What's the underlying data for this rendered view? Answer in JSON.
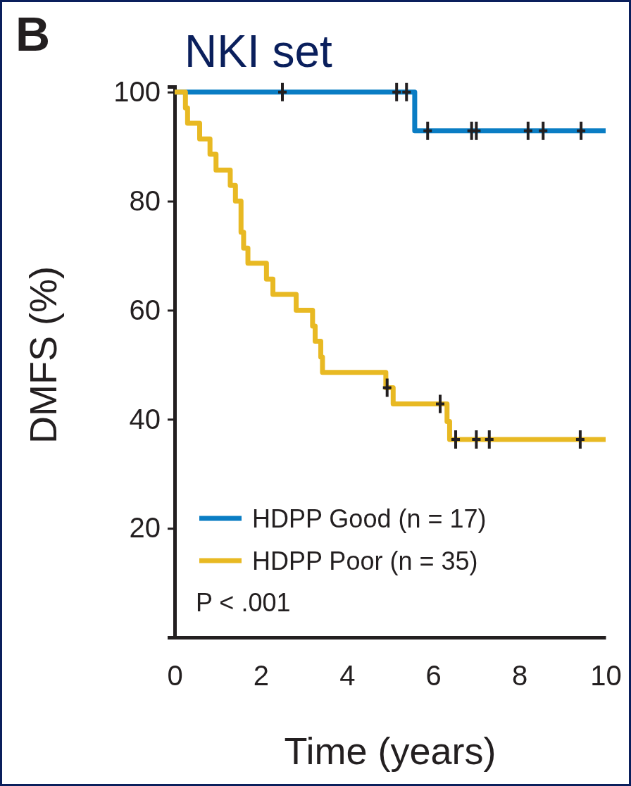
{
  "chart_data": {
    "type": "step",
    "title": "NKI set",
    "xlabel": "Time (years)",
    "ylabel": "DMFS (%)",
    "annotations": [
      "B",
      "P < .001"
    ],
    "xlim": [
      0,
      10
    ],
    "xticks": [
      0,
      2,
      4,
      6,
      8,
      10
    ],
    "ylim": [
      0,
      101
    ],
    "yticks": [
      20,
      40,
      60,
      80,
      100
    ],
    "grid": false,
    "legend": "bottom left",
    "line_style": "solid",
    "series": [
      {
        "name": "HDPP Good (n = 17)",
        "color": "#0a7dc4",
        "x": [
          0,
          5.57,
          10
        ],
        "values": [
          100,
          92.9,
          92.9
        ]
      },
      {
        "name": "HDPP Poor (n = 35)",
        "color": "#e8b923",
        "x": [
          0,
          0.25,
          0.3,
          0.58,
          0.82,
          0.96,
          1.29,
          1.41,
          1.54,
          1.6,
          1.7,
          2.13,
          2.28,
          2.82,
          3.2,
          3.26,
          3.39,
          3.43,
          4.9,
          5.07,
          6.32,
          6.38,
          10
        ],
        "values": [
          100,
          97.1,
          94.3,
          91.4,
          88.6,
          85.7,
          82.9,
          80,
          74.3,
          71.4,
          68.6,
          65.7,
          62.9,
          60,
          57.1,
          54.3,
          51.4,
          48.6,
          45.8,
          42.8,
          39.6,
          36.3,
          36.3
        ]
      },
      {
        "type": "scatter",
        "color": "#231f20",
        "marker": "cross",
        "x": [
          2.5,
          5.15,
          5.38,
          5.87,
          6.89,
          7.0,
          8.2,
          8.55,
          9.43
        ],
        "values": [
          100,
          100,
          100,
          92.9,
          92.9,
          92.9,
          92.9,
          92.9,
          92.9
        ]
      },
      {
        "type": "scatter",
        "color": "#231f20",
        "marker": "cross",
        "x": [
          4.93,
          6.16,
          6.52,
          7.0,
          7.3,
          9.41
        ],
        "values": [
          45.8,
          42.8,
          36.3,
          36.3,
          36.3,
          36.3
        ]
      }
    ]
  }
}
